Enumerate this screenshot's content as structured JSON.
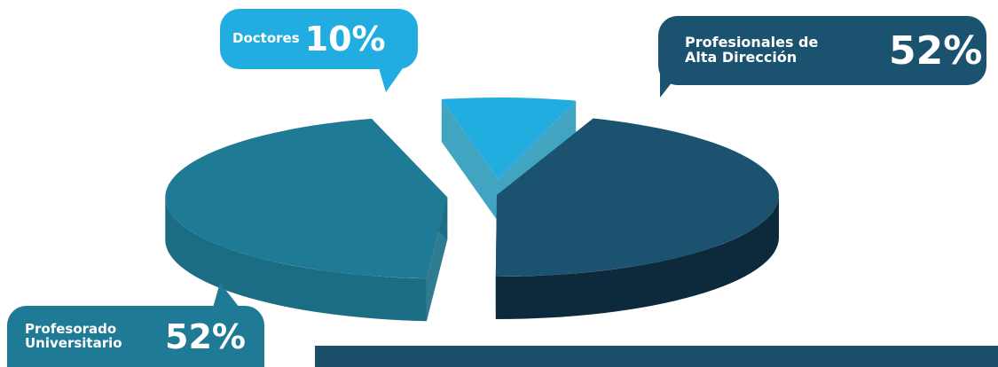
{
  "chart_data": {
    "type": "pie",
    "title": "",
    "slices": [
      {
        "label": "Profesionales de Alta Dirección",
        "label_lines": [
          "Profesionales de",
          "Alta Dirección"
        ],
        "value_label": "52%",
        "value": 52,
        "color": "#1a5270",
        "side_color": "#0d2a3d"
      },
      {
        "label": "Profesorado Universitario",
        "label_lines": [
          "Profesorado",
          "Universitario"
        ],
        "value_label": "52%",
        "value": 52,
        "color": "#1f7a95",
        "side_color": "#1a6d83"
      },
      {
        "label": "Doctores",
        "label_lines": [
          "Doctores"
        ],
        "value_label": "10%",
        "value": 10,
        "color": "#22ade0",
        "side_color": "#2c9bba"
      }
    ]
  },
  "callouts": {
    "doctores": {
      "label": "Doctores",
      "value": "10%",
      "color": "#22ade0"
    },
    "profesionales": {
      "line1": "Profesionales de",
      "line2": "Alta Dirección",
      "value": "52%",
      "color": "#1a5270"
    },
    "profesorado": {
      "line1": "Profesorado",
      "line2": "Universitario",
      "value": "52%",
      "color": "#1f7a95"
    }
  },
  "colors": {
    "footer_bar": "#1a4e6b"
  }
}
